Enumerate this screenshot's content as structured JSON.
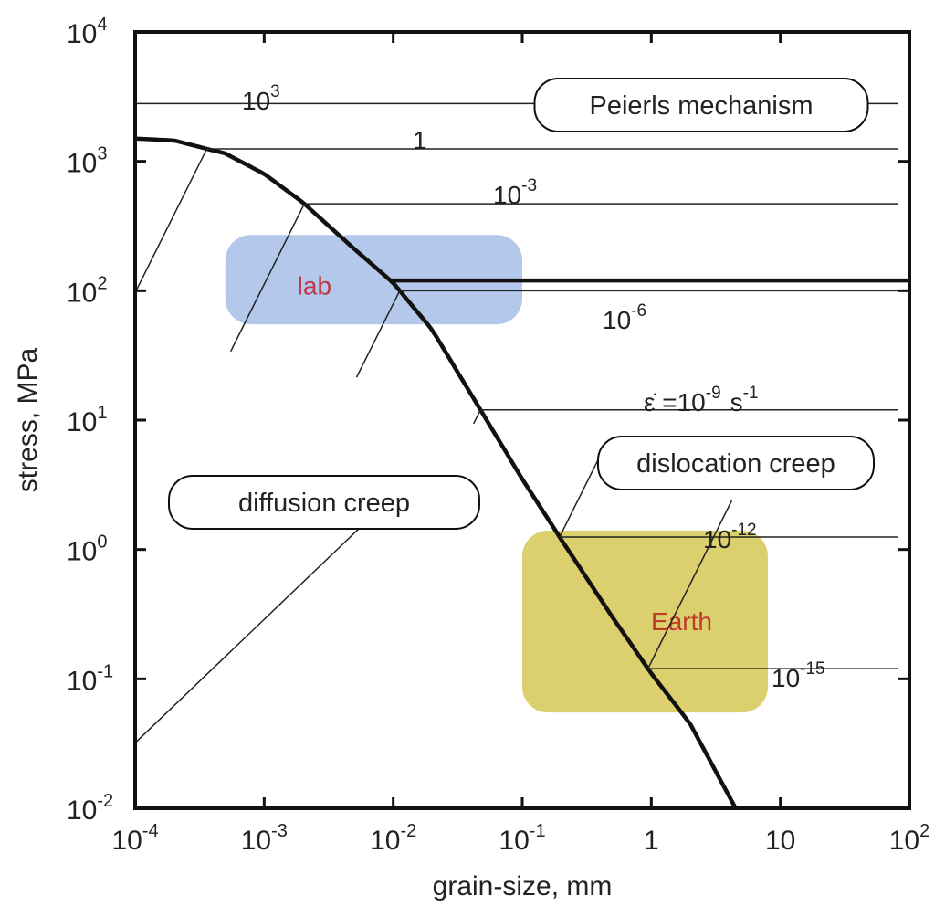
{
  "chart_data": {
    "type": "line",
    "xlabel": "grain-size, mm",
    "ylabel": "stress, MPa",
    "xscale": "log",
    "yscale": "log",
    "xlim": [
      0.0001,
      100
    ],
    "ylim": [
      0.01,
      10000
    ],
    "x_ticks": [
      {
        "base": "10",
        "exp": "-4"
      },
      {
        "base": "10",
        "exp": "-3"
      },
      {
        "base": "10",
        "exp": "-2"
      },
      {
        "base": "10",
        "exp": "-1"
      },
      {
        "base": "1",
        "exp": ""
      },
      {
        "base": "10",
        "exp": ""
      },
      {
        "base": "10",
        "exp": "2"
      }
    ],
    "y_ticks": [
      {
        "base": "10",
        "exp": "-2"
      },
      {
        "base": "10",
        "exp": "-1"
      },
      {
        "base": "10",
        "exp": "0"
      },
      {
        "base": "10",
        "exp": "1"
      },
      {
        "base": "10",
        "exp": "2"
      },
      {
        "base": "10",
        "exp": "3"
      },
      {
        "base": "10",
        "exp": "4"
      }
    ],
    "boundary_curve": {
      "x": [
        0.0001,
        0.0002,
        0.0005,
        0.001,
        0.002,
        0.005,
        0.01,
        0.02,
        0.05,
        0.1,
        0.2,
        0.5,
        1,
        2,
        4.5
      ],
      "y": [
        1500,
        1450,
        1150,
        800,
        480,
        210,
        115,
        50,
        11,
        3.5,
        1.2,
        0.3,
        0.11,
        0.045,
        0.01
      ]
    },
    "strain_rate_contours": [
      {
        "label": "10",
        "exp": "3",
        "stress": 2800,
        "diffusion_x_start": 0.0001
      },
      {
        "label": "1",
        "exp": "",
        "stress": 1250,
        "diffusion_x_start": 0.0001
      },
      {
        "label": "10",
        "exp": "-3",
        "stress": 470,
        "diffusion_x_start": 0.00055
      },
      {
        "label": "10",
        "exp": "-6",
        "stress": 100,
        "diffusion_x_start": 0.0052
      },
      {
        "label": "ε̇ =10",
        "exp": "-9",
        "stress": 12,
        "diffusion_x_start": 0.042
      },
      {
        "label": "10",
        "exp": "-12",
        "stress": 1.25,
        "diffusion_x_start": 0.4
      },
      {
        "label": "10",
        "exp": "-15",
        "stress": 0.12,
        "diffusion_x_start": 4.2
      }
    ],
    "s_minus_1": "s",
    "s_minus_1_exp": "-1",
    "peierls_transition_stress": 120,
    "mechanism_labels": [
      "Peierls mechanism",
      "dislocation creep",
      "diffusion creep"
    ],
    "regions": [
      {
        "label": "lab",
        "color": "#a8c0e8",
        "text_color": "#c0394b",
        "x_range": [
          0.0005,
          0.1
        ],
        "y_range": [
          55,
          270
        ]
      },
      {
        "label": "Earth",
        "color": "#d6c85a",
        "text_color": "#c0392b",
        "x_range": [
          0.1,
          8
        ],
        "y_range": [
          0.055,
          1.4
        ]
      }
    ]
  }
}
